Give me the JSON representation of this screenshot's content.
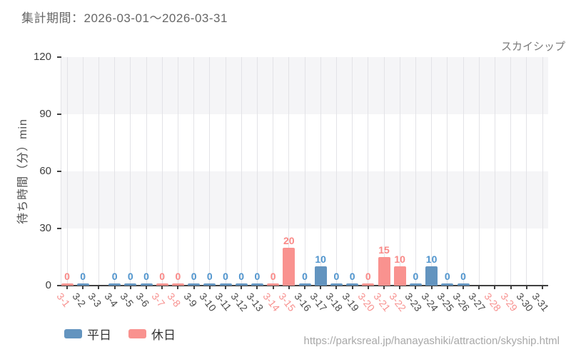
{
  "header": {
    "title": "集計期間：2026-03-01～2026-03-31"
  },
  "footer": {
    "url": "https://parksreal.jp/hanayashiki/attraction/skyship.html"
  },
  "colors": {
    "weekday_bar": "#6394bf",
    "holiday_bar": "#f9928f",
    "weekday_value_label": "#4f94cd",
    "holiday_value_label": "#f98886",
    "weekday_tick": "#4a4a4a",
    "holiday_tick": "#f7918f",
    "axis": "#404040",
    "vgrid": "#e3e3e7",
    "band": "#f5f5f7"
  },
  "chart_data": {
    "type": "bar",
    "title": "スカイシップ",
    "ylabel": "待ち時間（分）min",
    "xlabel": "",
    "ylim": [
      0,
      120
    ],
    "yticks": [
      0,
      30,
      60,
      90,
      120
    ],
    "grid": "alternating horizontal gray/white bands every 30 units, light vertical gridline at each day",
    "legend_position": "bottom-left",
    "legend": [
      {
        "label": "平日",
        "kind": "weekday"
      },
      {
        "label": "休日",
        "kind": "holiday"
      }
    ],
    "days": [
      {
        "label": "3-1",
        "kind": "holiday",
        "value": 0
      },
      {
        "label": "3-2",
        "kind": "weekday",
        "value": 0
      },
      {
        "label": "3-3",
        "kind": "weekday",
        "value": null
      },
      {
        "label": "3-4",
        "kind": "weekday",
        "value": 0
      },
      {
        "label": "3-5",
        "kind": "weekday",
        "value": 0
      },
      {
        "label": "3-6",
        "kind": "weekday",
        "value": 0
      },
      {
        "label": "3-7",
        "kind": "holiday",
        "value": 0
      },
      {
        "label": "3-8",
        "kind": "holiday",
        "value": 0
      },
      {
        "label": "3-9",
        "kind": "weekday",
        "value": 0
      },
      {
        "label": "3-10",
        "kind": "weekday",
        "value": 0
      },
      {
        "label": "3-11",
        "kind": "weekday",
        "value": 0
      },
      {
        "label": "3-12",
        "kind": "weekday",
        "value": 0
      },
      {
        "label": "3-13",
        "kind": "weekday",
        "value": 0
      },
      {
        "label": "3-14",
        "kind": "holiday",
        "value": 0
      },
      {
        "label": "3-15",
        "kind": "holiday",
        "value": 20
      },
      {
        "label": "3-16",
        "kind": "weekday",
        "value": 0
      },
      {
        "label": "3-17",
        "kind": "weekday",
        "value": 10
      },
      {
        "label": "3-18",
        "kind": "weekday",
        "value": 0
      },
      {
        "label": "3-19",
        "kind": "weekday",
        "value": 0
      },
      {
        "label": "3-20",
        "kind": "holiday",
        "value": 0
      },
      {
        "label": "3-21",
        "kind": "holiday",
        "value": 15
      },
      {
        "label": "3-22",
        "kind": "holiday",
        "value": 10
      },
      {
        "label": "3-23",
        "kind": "weekday",
        "value": 0
      },
      {
        "label": "3-24",
        "kind": "weekday",
        "value": 10
      },
      {
        "label": "3-25",
        "kind": "weekday",
        "value": 0
      },
      {
        "label": "3-26",
        "kind": "weekday",
        "value": 0
      },
      {
        "label": "3-27",
        "kind": "weekday",
        "value": null
      },
      {
        "label": "3-28",
        "kind": "holiday",
        "value": null
      },
      {
        "label": "3-29",
        "kind": "holiday",
        "value": null
      },
      {
        "label": "3-30",
        "kind": "weekday",
        "value": null
      },
      {
        "label": "3-31",
        "kind": "weekday",
        "value": null
      }
    ]
  }
}
